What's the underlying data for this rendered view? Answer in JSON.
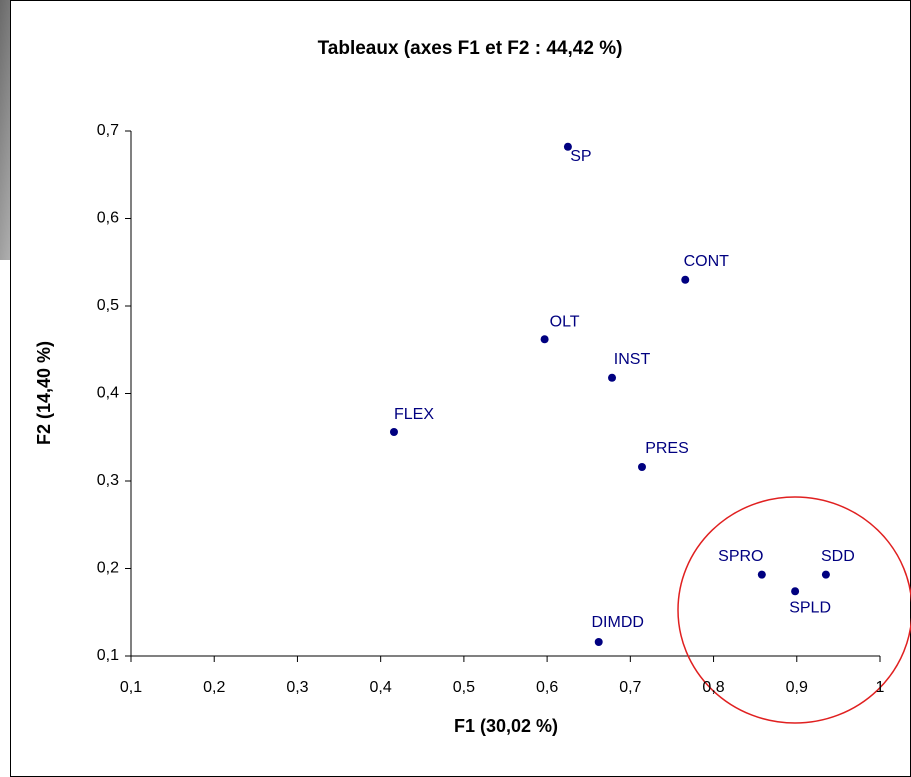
{
  "chart_data": {
    "type": "scatter",
    "title": "Tableaux (axes F1 et F2 : 44,42 %)",
    "xlabel": "F1 (30,02 %)",
    "ylabel": "F2 (14,40 %)",
    "x": [
      0.625,
      0.766,
      0.597,
      0.678,
      0.416,
      0.714,
      0.858,
      0.935,
      0.898,
      0.662
    ],
    "series": [
      {
        "color": "#000080",
        "values": [
          0.682,
          0.53,
          0.462,
          0.418,
          0.356,
          0.316,
          0.193,
          0.193,
          0.174,
          0.116
        ],
        "labels": [
          "SP",
          "CONT",
          "OLT",
          "INST",
          "FLEX",
          "PRES",
          "SPRO",
          "SDD",
          "SPLD",
          "DIMDD"
        ]
      }
    ],
    "xlim": [
      0.1,
      1
    ],
    "ylim": [
      0.1,
      0.7
    ],
    "xticks": [
      {
        "value": 0.1,
        "label": "0,1"
      },
      {
        "value": 0.2,
        "label": "0,2"
      },
      {
        "value": 0.3,
        "label": "0,3"
      },
      {
        "value": 0.4,
        "label": "0,4"
      },
      {
        "value": 0.5,
        "label": "0,5"
      },
      {
        "value": 0.6,
        "label": "0,6"
      },
      {
        "value": 0.7,
        "label": "0,7"
      },
      {
        "value": 0.8,
        "label": "0,8"
      },
      {
        "value": 0.9,
        "label": "0,9"
      },
      1
    ],
    "yticks": [
      {
        "value": 0.1,
        "label": "0,1"
      },
      {
        "value": 0.2,
        "label": "0,2"
      },
      {
        "value": 0.3,
        "label": "0,3"
      },
      {
        "value": 0.4,
        "label": "0,4"
      },
      {
        "value": 0.5,
        "label": "0,5"
      },
      {
        "value": 0.6,
        "label": "0,6"
      },
      {
        "value": 0.7,
        "label": "0,7"
      }
    ],
    "grid": false
  }
}
